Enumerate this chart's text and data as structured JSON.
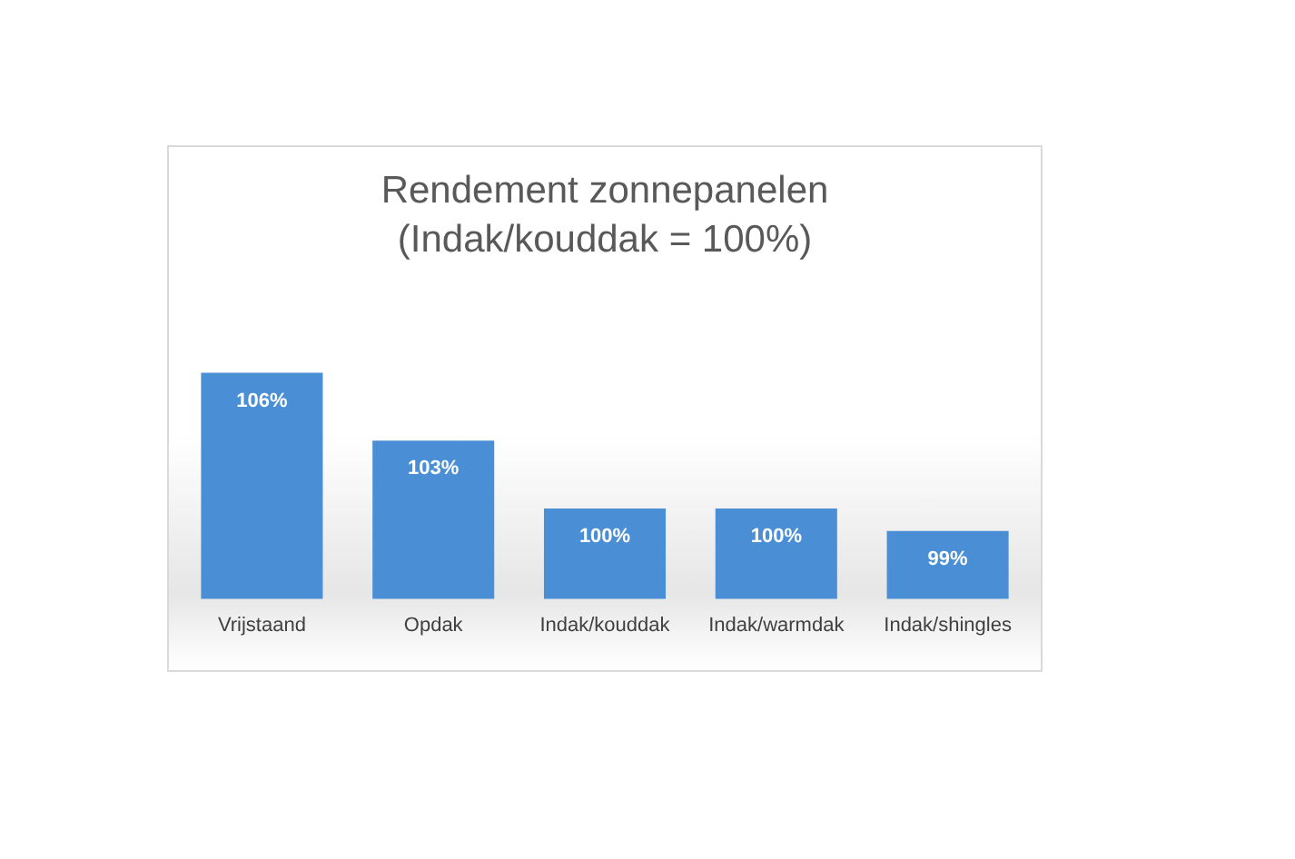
{
  "chart_data": {
    "type": "bar",
    "title": "Rendement zonnepanelen",
    "subtitle": "(Indak/kouddak = 100%)",
    "categories": [
      "Vrijstaand",
      "Opdak",
      "Indak/kouddak",
      "Indak/warmdak",
      "Indak/shingles"
    ],
    "values": [
      106,
      103,
      100,
      100,
      99
    ],
    "value_labels": [
      "106%",
      "103%",
      "100%",
      "100%",
      "99%"
    ],
    "color": "#4a8fd6",
    "tick_labels": "x",
    "grid": false,
    "legend": false
  }
}
